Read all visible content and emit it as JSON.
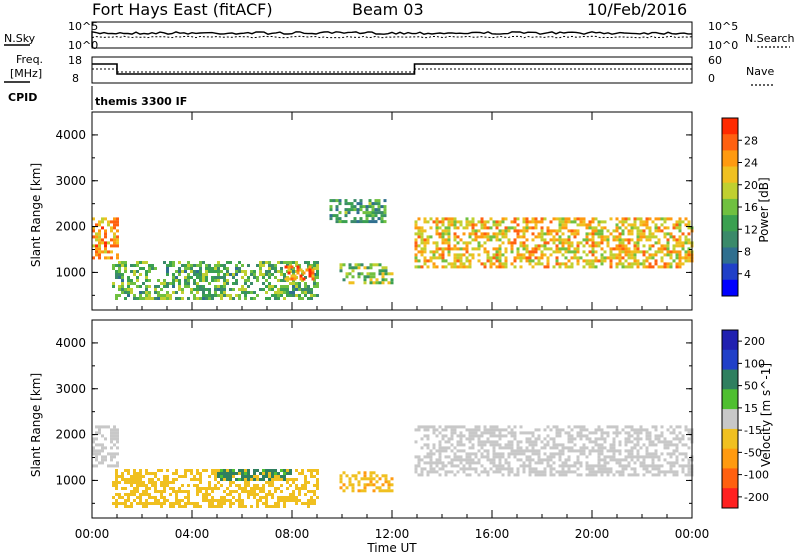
{
  "header": {
    "station": "Fort Hays East (fitACF)",
    "beam": "Beam 03",
    "date": "10/Feb/2016"
  },
  "top_panels": {
    "nsky_label": "N.Sky",
    "nsky_ticks": [
      "10^5",
      "10^0"
    ],
    "nsearch_label": "N.Search",
    "nsearch_ticks": [
      "10^5",
      "10^0"
    ],
    "freq_label_1": "Freq.",
    "freq_label_2": "[MHz]",
    "freq_ticks": [
      "18",
      "8"
    ],
    "nave_label": "Nave",
    "nave_ticks": [
      "60",
      "0"
    ],
    "cpid_label": "CPID",
    "cpid_text": "themis 3300 IF"
  },
  "chart_data": [
    {
      "type": "heatmap",
      "panel": "power",
      "xlabel": "",
      "ylabel": "Slant Range [km]",
      "yticks": [
        "1000",
        "2000",
        "3000",
        "4000"
      ],
      "ylim": [
        180,
        4500
      ],
      "xlim": [
        0,
        24
      ],
      "colorbar": {
        "label": "Power [dB]",
        "ticks": [
          "4",
          "8",
          "12",
          "16",
          "20",
          "24",
          "28"
        ],
        "range": [
          0,
          32
        ],
        "colors": [
          "#0000ff",
          "#2040c8",
          "#2f6f8f",
          "#3a8a6a",
          "#3aa050",
          "#70c040",
          "#c0d030",
          "#f0c020",
          "#ff9a10",
          "#ff6010",
          "#ff2a00"
        ]
      },
      "echo_regions": [
        {
          "region": "near-range band 00-01 UT",
          "x": [
            0,
            1.0
          ],
          "y": [
            1300,
            2200
          ],
          "value_db": 24
        },
        {
          "region": "lower arc 01-09 UT",
          "x": [
            0.8,
            9.0
          ],
          "y": [
            450,
            1250
          ],
          "value_db": 14
        },
        {
          "region": "patch 08-09 UT",
          "x": [
            7.7,
            8.8
          ],
          "y": [
            850,
            1150
          ],
          "value_db": 26
        },
        {
          "region": "patch 10-12 UT",
          "x": [
            9.9,
            12.0
          ],
          "y": [
            800,
            1200
          ],
          "value_db": 16
        },
        {
          "region": "upper patch 09.5-11.7 UT",
          "x": [
            9.5,
            11.7
          ],
          "y": [
            2100,
            2600
          ],
          "value_db": 12
        },
        {
          "region": "main band 13-24 UT",
          "x": [
            12.9,
            24.0
          ],
          "y": [
            1100,
            2200
          ],
          "value_db": 22
        }
      ]
    },
    {
      "type": "heatmap",
      "panel": "velocity",
      "xlabel": "Time UT",
      "ylabel": "Slant Range [km]",
      "xticks": [
        "00:00",
        "04:00",
        "08:00",
        "12:00",
        "16:00",
        "20:00",
        "00:00"
      ],
      "yticks": [
        "1000",
        "2000",
        "3000",
        "4000"
      ],
      "ylim": [
        180,
        4500
      ],
      "xlim": [
        0,
        24
      ],
      "colorbar": {
        "label": "Velocity [m s^-1]",
        "ticks": [
          "200",
          "100",
          "50",
          "15",
          "-15",
          "-50",
          "-100",
          "-200"
        ],
        "colors": [
          "#2020b0",
          "#2040c8",
          "#2f7f5f",
          "#4fbf30",
          "#c8c8c8",
          "#f0c020",
          "#ff9a10",
          "#ff6010",
          "#ff2020"
        ]
      },
      "echo_regions": [
        {
          "region": "near-range band 00-01 UT",
          "x": [
            0,
            1.0
          ],
          "y": [
            1300,
            2200
          ],
          "value_ms": 0
        },
        {
          "region": "lower arc 01-09 UT",
          "x": [
            0.8,
            9.0
          ],
          "y": [
            450,
            1250
          ],
          "value_ms": -30
        },
        {
          "region": "patch 05-08 UT",
          "x": [
            5.0,
            8.0
          ],
          "y": [
            1000,
            1250
          ],
          "value_ms": 40
        },
        {
          "region": "patch 10-12 UT",
          "x": [
            9.9,
            12.0
          ],
          "y": [
            800,
            1200
          ],
          "value_ms": -40
        },
        {
          "region": "main band 13-24 UT",
          "x": [
            12.9,
            24.0
          ],
          "y": [
            1100,
            2200
          ],
          "value_ms": 0
        }
      ]
    }
  ]
}
